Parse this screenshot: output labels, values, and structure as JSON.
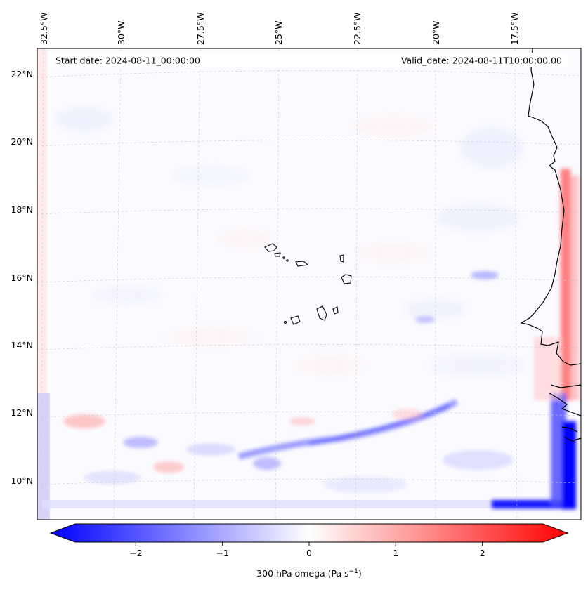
{
  "map": {
    "start_date": "Start date: 2024-08-11_00:00:00",
    "valid_date": "Valid_date: 2024-08-11T10:00:00.00",
    "lon_labels": [
      "32.5°W",
      "30°W",
      "27.5°W",
      "25°W",
      "22.5°W",
      "20°W",
      "17.5°W"
    ],
    "lat_labels": [
      "22°N",
      "20°N",
      "18°N",
      "16°N",
      "14°N",
      "12°N",
      "10°N"
    ]
  },
  "colorbar": {
    "ticks": [
      "−2",
      "−1",
      "0",
      "1",
      "2"
    ],
    "tick_values": [
      -2,
      -1,
      0,
      1,
      2
    ],
    "range": [
      -2.7,
      2.7
    ],
    "label_main": "300 hPa omega (Pa s",
    "label_sup": "−1",
    "label_end": ")",
    "colors": {
      "negative": "#0000ff",
      "zero": "#ffffff",
      "positive": "#ff0000"
    }
  }
}
